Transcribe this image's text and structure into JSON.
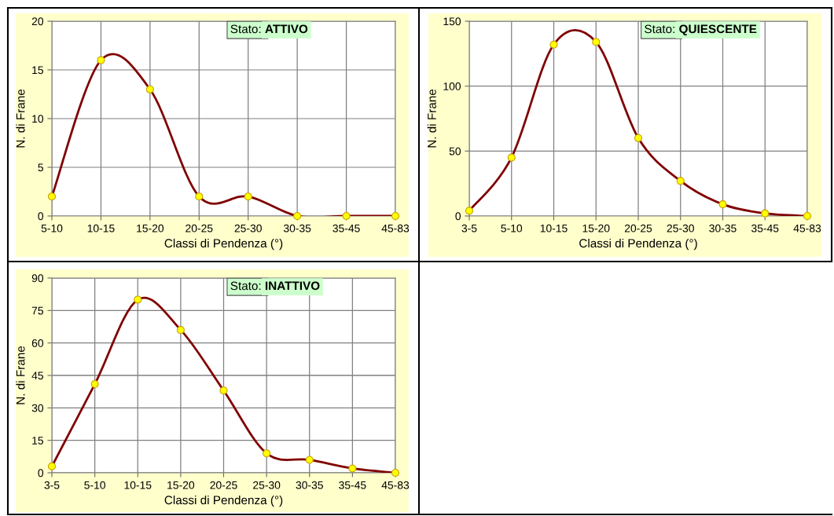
{
  "chart_data": [
    {
      "type": "line",
      "title": "Stato: ATTIVO",
      "xlabel": "Classi di Pendenza (°)",
      "ylabel": "N. di Frane",
      "categories": [
        "5-10",
        "10-15",
        "15-20",
        "20-25",
        "25-30",
        "30-35",
        "35-45",
        "45-83"
      ],
      "series": [
        {
          "color": "#800000",
          "values": [
            2,
            16,
            13,
            2,
            2,
            0,
            0,
            0
          ]
        }
      ],
      "ylim": [
        0,
        20
      ],
      "yticks": [
        0,
        5,
        10,
        15,
        20
      ],
      "grid": true,
      "marker": "circle",
      "line_style": "solid"
    },
    {
      "type": "line",
      "title": "Stato: QUIESCENTE",
      "xlabel": "Classi di Pendenza (°)",
      "ylabel": "N. di Frane",
      "categories": [
        "3-5",
        "5-10",
        "10-15",
        "15-20",
        "20-25",
        "25-30",
        "30-35",
        "35-45",
        "45-83"
      ],
      "series": [
        {
          "color": "#800000",
          "values": [
            4,
            45,
            132,
            134,
            60,
            27,
            9,
            2,
            0
          ]
        }
      ],
      "ylim": [
        0,
        150
      ],
      "yticks": [
        0,
        50,
        100,
        150
      ],
      "grid": true,
      "marker": "circle",
      "line_style": "solid"
    },
    {
      "type": "line",
      "title": "Stato: INATTIVO",
      "xlabel": "Classi di Pendenza (°)",
      "ylabel": "N. di Frane",
      "categories": [
        "3-5",
        "5-10",
        "10-15",
        "15-20",
        "20-25",
        "25-30",
        "30-35",
        "35-45",
        "45-83"
      ],
      "series": [
        {
          "color": "#800000",
          "values": [
            3,
            41,
            80,
            66,
            38,
            9,
            6,
            2,
            0
          ]
        }
      ],
      "ylim": [
        0,
        90
      ],
      "yticks": [
        0,
        15,
        30,
        45,
        60,
        75,
        90
      ],
      "grid": true,
      "marker": "circle",
      "line_style": "solid"
    }
  ]
}
